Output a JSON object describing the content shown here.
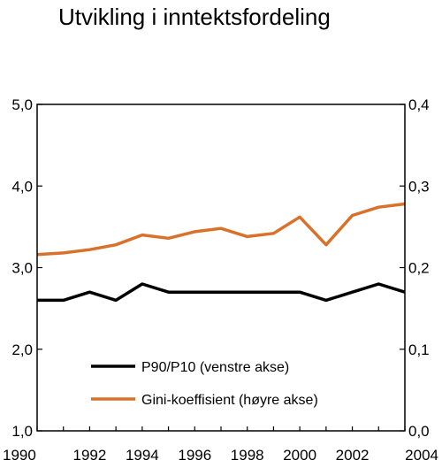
{
  "chart_data": {
    "type": "line",
    "title": "Utvikling i inntektsfordeling",
    "x": [
      1990,
      1991,
      1992,
      1993,
      1994,
      1995,
      1996,
      1997,
      1998,
      1999,
      2000,
      2001,
      2002,
      2003,
      2004
    ],
    "x_ticks": [
      1990,
      1992,
      1994,
      1996,
      1998,
      2000,
      2002,
      2004
    ],
    "xlim": [
      1990,
      2004
    ],
    "y_left": {
      "ylim": [
        1.0,
        5.0
      ],
      "ticks": [
        "1,0",
        "2,0",
        "3,0",
        "4,0",
        "5,0"
      ],
      "tick_values": [
        1.0,
        2.0,
        3.0,
        4.0,
        5.0
      ]
    },
    "y_right": {
      "ylim": [
        0.0,
        0.4
      ],
      "ticks": [
        "0,0",
        "0,1",
        "0,2",
        "0,3",
        "0,4"
      ],
      "tick_values": [
        0.0,
        0.1,
        0.2,
        0.3,
        0.4
      ]
    },
    "series": [
      {
        "name": "P90/P10 (venstre akse)",
        "axis": "left",
        "color": "#000000",
        "values": [
          2.6,
          2.6,
          2.7,
          2.6,
          2.8,
          2.7,
          2.7,
          2.7,
          2.7,
          2.7,
          2.7,
          2.6,
          2.7,
          2.8,
          2.7
        ]
      },
      {
        "name": "Gini-koeffisient (høyre akse)",
        "axis": "right",
        "color": "#d9712a",
        "values": [
          0.216,
          0.218,
          0.222,
          0.228,
          0.24,
          0.236,
          0.244,
          0.248,
          0.238,
          0.242,
          0.262,
          0.228,
          0.264,
          0.274,
          0.278
        ]
      }
    ],
    "grid": false,
    "legend_position": "bottom-right"
  }
}
